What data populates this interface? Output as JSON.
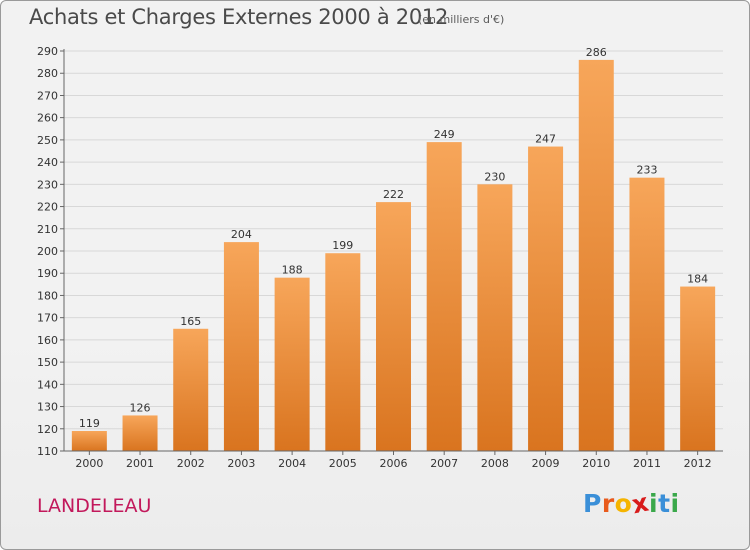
{
  "header": {
    "title": "Achats et Charges Externes 2000 à 2012",
    "unit": "(en milliers d'€)"
  },
  "footer": {
    "location": "LANDELEAU",
    "logo": {
      "letters": [
        "P",
        "r",
        "o",
        "x",
        "i",
        "t",
        "i"
      ],
      "colors": [
        "#3a8fd8",
        "#e85a1c",
        "#f5b400",
        "#d81b1b",
        "#3aa84a",
        "#3a8fd8",
        "#3aa84a"
      ]
    }
  },
  "colors": {
    "bar_light": "#f7a65a",
    "bar_dark": "#d9741f",
    "grid": "#d8d8d8",
    "axis": "#666666",
    "label": "#333333"
  },
  "chart_data": {
    "type": "bar",
    "categories": [
      "2000",
      "2001",
      "2002",
      "2003",
      "2004",
      "2005",
      "2006",
      "2007",
      "2008",
      "2009",
      "2010",
      "2011",
      "2012"
    ],
    "values": [
      119,
      126,
      165,
      204,
      188,
      199,
      222,
      249,
      230,
      247,
      286,
      233,
      184
    ],
    "ylim": [
      110,
      290
    ],
    "yticks": [
      110,
      120,
      130,
      140,
      150,
      160,
      170,
      180,
      190,
      200,
      210,
      220,
      230,
      240,
      250,
      260,
      270,
      280,
      290
    ],
    "grid": true,
    "xlabel": "",
    "ylabel": ""
  }
}
